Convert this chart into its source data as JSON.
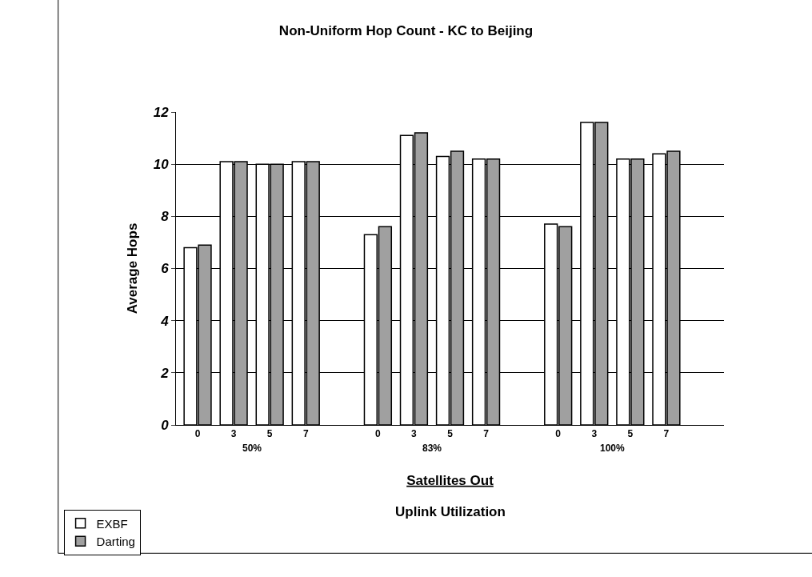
{
  "chart_data": {
    "type": "bar",
    "title": "Non-Uniform Hop Count - KC to Beijing",
    "xlabel": "Satellites Out",
    "ylabel": "Average Hops",
    "categories": [
      "0",
      "3",
      "5",
      "7",
      null,
      "0",
      "3",
      "5",
      "7",
      null,
      "0",
      "3",
      "5",
      "7",
      null
    ],
    "series": [
      {
        "name": "EXBF",
        "color": "#ffffff",
        "values": [
          6.8,
          10.1,
          10.0,
          10.1,
          null,
          7.3,
          11.1,
          10.3,
          10.2,
          null,
          7.7,
          11.6,
          10.2,
          10.4,
          null
        ]
      },
      {
        "name": "Darting",
        "color": "#a0a0a0",
        "values": [
          6.9,
          10.1,
          10.0,
          10.1,
          null,
          7.6,
          11.2,
          10.5,
          10.2,
          null,
          7.6,
          11.6,
          10.2,
          10.5,
          null
        ]
      }
    ],
    "annotations": [
      "50%",
      "83%",
      "100%",
      "Uplink Utilization"
    ],
    "ylim": [
      0,
      12
    ],
    "yticks": [
      0,
      2,
      4,
      6,
      8,
      10,
      12
    ],
    "grid": "y",
    "legend": "bottom left"
  }
}
